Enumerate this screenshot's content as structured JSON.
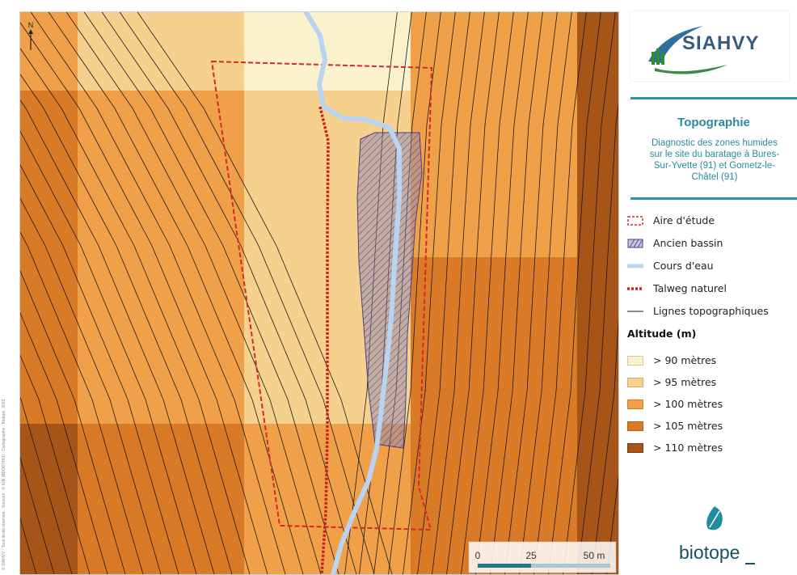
{
  "credits": "© SIAHVY - Tous droits réservés - Sources : © IGN (BDORTHO) - Cartographie : Biotope, 2023",
  "north_label": "N",
  "scale_bar": {
    "ticks": [
      "0",
      "25",
      "50 m"
    ]
  },
  "brand": {
    "name": "SIAHVY",
    "footer_logo": "biotope"
  },
  "header": {
    "title": "Topographie",
    "subtitle_lines": [
      "Diagnostic des zones humides",
      "sur le site du baratage à Bures-",
      "Sur-Yvette (91) et Gometz-le-",
      "Châtel (91)"
    ]
  },
  "legend": {
    "features": [
      {
        "label": "Aire d'étude",
        "symbol": "dashed-red-box"
      },
      {
        "label": "Ancien bassin",
        "symbol": "hatched-purple-box"
      },
      {
        "label": "Cours d'eau",
        "symbol": "light-blue-line"
      },
      {
        "label": "Talweg naturel",
        "symbol": "dashed-red-line"
      },
      {
        "label": "Lignes topographiques",
        "symbol": "thin-black-line"
      }
    ],
    "altitude_title": "Altitude (m)",
    "altitude_classes": [
      {
        "label": "> 90 mètres",
        "color": "#fbf1cc"
      },
      {
        "label": "> 95 mètres",
        "color": "#f6d08d"
      },
      {
        "label": "> 100 mètres",
        "color": "#f0a048"
      },
      {
        "label": "> 105 mètres",
        "color": "#d97a26"
      },
      {
        "label": "> 110 mètres",
        "color": "#a75418"
      }
    ]
  },
  "colors": {
    "study_area": "#d42a2a",
    "talweg": "#c8201c",
    "river": "#b8d4f0",
    "basin_fill": "#8a80b8",
    "basin_line": "#4a3f8a",
    "contour": "#1a1a1a",
    "teal": "#2a95a6"
  }
}
